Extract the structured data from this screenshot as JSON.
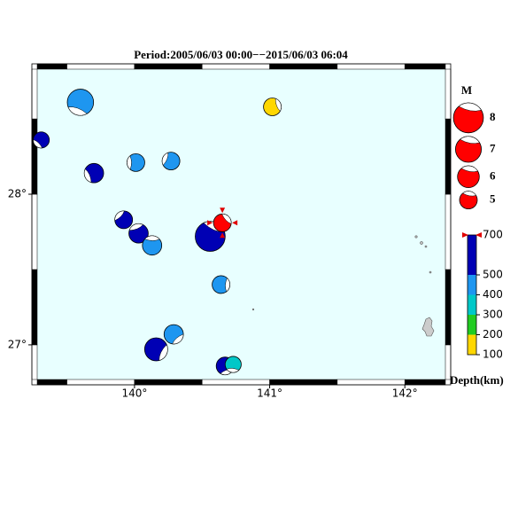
{
  "title": "Period:2005/06/03 00:00−−2015/06/03 06:04",
  "map": {
    "xlim": [
      139.28,
      142.3
    ],
    "ylim": [
      26.77,
      28.83
    ],
    "xticks": [
      {
        "value": 140,
        "label": "140°"
      },
      {
        "value": 141,
        "label": "141°"
      },
      {
        "value": 142,
        "label": "142°"
      }
    ],
    "yticks": [
      {
        "value": 27,
        "label": "27°"
      },
      {
        "value": 28,
        "label": "28°"
      }
    ],
    "sea_color": "#e8ffff",
    "events": [
      {
        "lon": 139.6,
        "lat": 28.61,
        "magnitude": 7.1,
        "color": "#1e96f0"
      },
      {
        "lon": 139.31,
        "lat": 28.36,
        "magnitude": 4.6,
        "color": "#0000b4"
      },
      {
        "lon": 139.7,
        "lat": 28.14,
        "magnitude": 5.4,
        "color": "#0000b4"
      },
      {
        "lon": 140.01,
        "lat": 28.21,
        "magnitude": 5.0,
        "color": "#1e96f0"
      },
      {
        "lon": 140.27,
        "lat": 28.22,
        "magnitude": 5.0,
        "color": "#1e96f0"
      },
      {
        "lon": 139.92,
        "lat": 27.83,
        "magnitude": 5.0,
        "color": "#0000b4"
      },
      {
        "lon": 140.03,
        "lat": 27.74,
        "magnitude": 5.4,
        "color": "#0000b4"
      },
      {
        "lon": 140.13,
        "lat": 27.66,
        "magnitude": 5.4,
        "color": "#1e96f0"
      },
      {
        "lon": 140.56,
        "lat": 27.72,
        "magnitude": 8.0,
        "color": "#0000b4"
      },
      {
        "lon": 140.65,
        "lat": 27.81,
        "magnitude": 5.0,
        "color": "#ff0000"
      },
      {
        "lon": 141.02,
        "lat": 28.58,
        "magnitude": 5.0,
        "color": "#ffd700"
      },
      {
        "lon": 140.64,
        "lat": 27.4,
        "magnitude": 5.0,
        "color": "#1e96f0"
      },
      {
        "lon": 140.16,
        "lat": 26.97,
        "magnitude": 6.3,
        "color": "#0000b4"
      },
      {
        "lon": 140.29,
        "lat": 27.07,
        "magnitude": 5.4,
        "color": "#1e96f0"
      },
      {
        "lon": 140.67,
        "lat": 26.86,
        "magnitude": 5.0,
        "color": "#0000b4"
      },
      {
        "lon": 140.73,
        "lat": 26.87,
        "magnitude": 4.6,
        "color": "#00c8c8"
      }
    ]
  },
  "magnitude_legend": {
    "title": "M",
    "color": "#ff0000",
    "values": [
      8,
      7,
      6,
      5
    ]
  },
  "depth_scale": {
    "label": "Depth(km)",
    "ticks": [
      100,
      200,
      300,
      400,
      500,
      700
    ],
    "colors": [
      "#ffd700",
      "#22cc22",
      "#00c8c8",
      "#1e96f0",
      "#0000b4"
    ]
  }
}
